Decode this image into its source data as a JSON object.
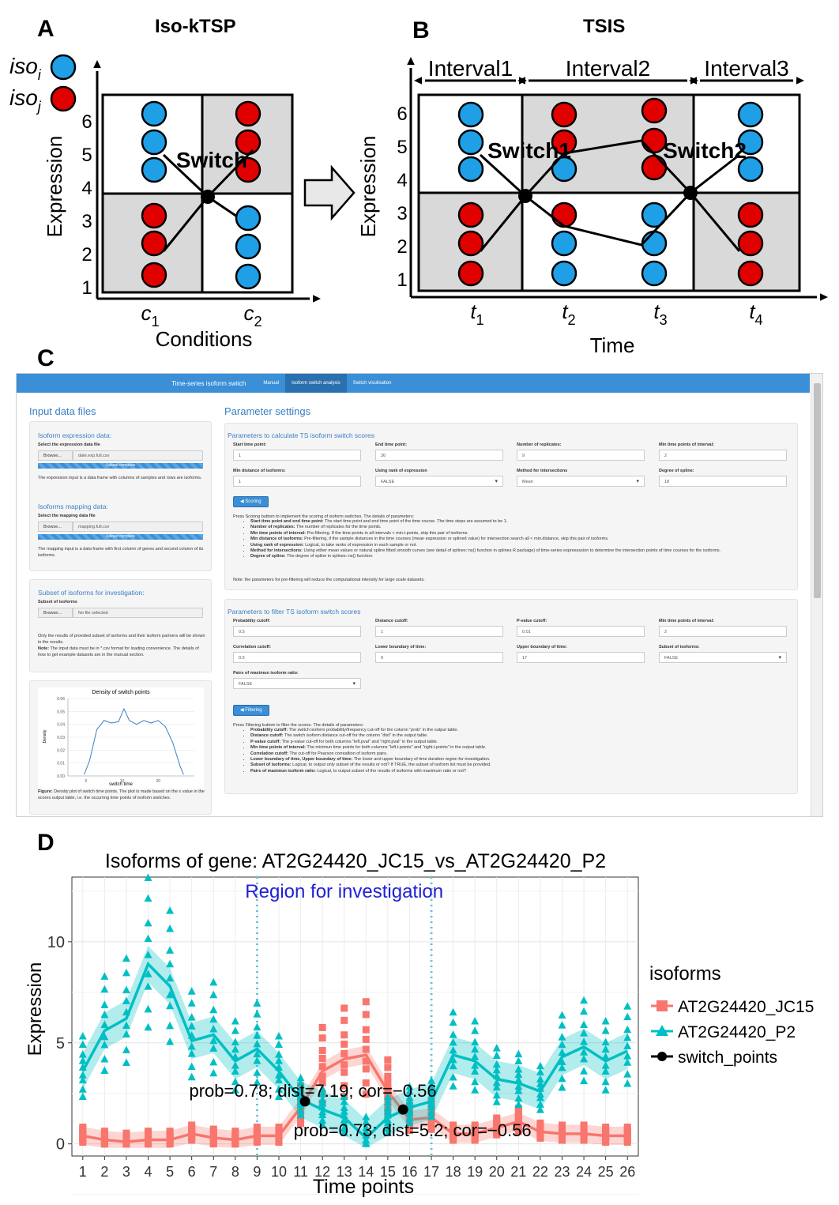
{
  "panelA": {
    "letter": "A",
    "title": "Iso-kTSP",
    "legend": [
      {
        "label": "iso_i",
        "color": "#1e9fe6"
      },
      {
        "label": "iso_j",
        "color": "#e00000"
      }
    ],
    "ylabel": "Expression",
    "xlabel": "Conditions",
    "yticks": [
      "1",
      "2",
      "3",
      "4",
      "5",
      "6"
    ],
    "xticks": [
      "c_1",
      "c_2"
    ],
    "switch_label": "Switch"
  },
  "panelB": {
    "letter": "B",
    "title": "TSIS",
    "intervals": [
      "Interval1",
      "Interval2",
      "Interval3"
    ],
    "ylabel": "Expression",
    "xlabel": "Time",
    "yticks": [
      "1",
      "2",
      "3",
      "4",
      "5",
      "6"
    ],
    "xticks": [
      "t_1",
      "t_2",
      "t_3",
      "t_4"
    ],
    "switch_labels": [
      "Switch1",
      "Switch2"
    ]
  },
  "panelC": {
    "letter": "C",
    "navbar": {
      "brand": "Time-series isoform switch",
      "items": [
        "Manual",
        "Isoform switch analysis",
        "Switch visulisation"
      ],
      "active": "Isoform switch analysis"
    },
    "input_header": "Input data files",
    "param_header": "Parameter settings",
    "expr": {
      "title": "Isoform expression data:",
      "select_label": "Select the expression data file",
      "browse": "Browse...",
      "file": "date.exp.full.csv",
      "progress": "Upload complete",
      "help": "The expression input is a data frame with columns of samples and rows are isoforms."
    },
    "mapping": {
      "title": "Isoforms mapping data:",
      "select_label": "Select the mapping data file",
      "browse": "Browse...",
      "file": "mapping.full.csv",
      "progress": "Upload complete",
      "help": "The mapping input is a data frame with first column of genes and second column of its isoforms."
    },
    "subset": {
      "title": "Subset of isoforms for investigation:",
      "label": "Subset of isoforms",
      "browse": "Browse...",
      "file": "No file selected",
      "help1": "Only the results of provided subset of isoforms and their isoform partners will be shown in the results.",
      "note_bold": "Note:",
      "help2": "The input data must be in *.csv format for loading convenience. The details of how to get example datasets are in the manual section."
    },
    "density": {
      "title": "Density of switch points",
      "xlabel": "switch time",
      "ylabel": "Density",
      "yticks": [
        "0.00",
        "0.01",
        "0.02",
        "0.03",
        "0.04",
        "0.05",
        "0.06"
      ],
      "xticks": [
        "0",
        "10",
        "20"
      ],
      "caption_bold": "Figure:",
      "caption": "Density plot of switch time points. The plot is made based on the x value in the scores output table, i.e. the occurring time points of isoform switches."
    },
    "score_well": {
      "title": "Parameters to calculate TS isoform switch scores",
      "fields": [
        {
          "label": "Start time point:",
          "value": "1",
          "type": "input"
        },
        {
          "label": "End time point:",
          "value": "26",
          "type": "input"
        },
        {
          "label": "Number of replicates:",
          "value": "9",
          "type": "input"
        },
        {
          "label": "Min time points of interval:",
          "value": "2",
          "type": "input"
        },
        {
          "label": "Min distance of isofomrs:",
          "value": "1",
          "type": "input"
        },
        {
          "label": "Using rank of expression",
          "value": "FALSE",
          "type": "select"
        },
        {
          "label": "Method for intersections",
          "value": "Mean",
          "type": "select"
        },
        {
          "label": "Degree of spline:",
          "value": "18",
          "type": "input"
        }
      ],
      "button": "Scoring",
      "intro": "Press Scoring buttom to implement the scoring of isoform switches. The details of parameters:",
      "help": [
        {
          "b": "Start time point and end time point:",
          "t": "The start time point and end time point of the time course. The time steps are assumed to be 1."
        },
        {
          "b": "Number of replicates:",
          "t": "The number of replicates for the time points."
        },
        {
          "b": "Min time points of interval:",
          "t": "Pre-filtering. If the time points in all intervals < min.t.points, skip this pair of isoforms."
        },
        {
          "b": "Min distance of isoforms:",
          "t": "Pre-filtering, if the sample distances in the time courses (mean expression or splined value) for intersection search all < min.distance, skip this pair of isoforms."
        },
        {
          "b": "Using rank of expression:",
          "t": "Logical, to take ranks of expression in each sample or not."
        },
        {
          "b": "Method for intersections:",
          "t": "Using either mean values or natural spline fitted smooth curves (see detail of splines::ns() function in splines R package) of time-series expressssion to determine the intersection points of time courses for the isoforms."
        },
        {
          "b": "Degree of spline:",
          "t": "The degree of spline in splines::ns() function."
        }
      ],
      "note": "Note: the parameters for pre-filtering will reduce the computational intensity for large scale datasets."
    },
    "filter_well": {
      "title": "Parameters to filter TS isoform switch scores",
      "fields": [
        {
          "label": "Probability cutoff:",
          "value": "0.5",
          "type": "input"
        },
        {
          "label": "Distance cutoff:",
          "value": "1",
          "type": "input"
        },
        {
          "label": "P-value cutoff:",
          "value": "0.01",
          "type": "input"
        },
        {
          "label": "Min time points of interval:",
          "value": "2",
          "type": "input"
        },
        {
          "label": "Correlation cutoff:",
          "value": "0.5",
          "type": "input"
        },
        {
          "label": "Lower boundary of time:",
          "value": "9",
          "type": "input"
        },
        {
          "label": "Upper boundary of time:",
          "value": "17",
          "type": "input"
        },
        {
          "label": "Subset of isoforms:",
          "value": "FALSE",
          "type": "select"
        },
        {
          "label": "Pairs of maximun isoform ratio:",
          "value": "FALSE",
          "type": "select"
        }
      ],
      "button": "Filtering",
      "intro": "Press Filtering buttom to filter the scores. The details of parameters:",
      "help": [
        {
          "b": "Probability cutoff:",
          "t": "The switch isoform probability/frequency cut-off for the column \"prob\" in the output table."
        },
        {
          "b": "Distance cutoff:",
          "t": "The switch isoform distance cut-off for the column \"dist\" in the output table."
        },
        {
          "b": "P-value cutoff:",
          "t": "The p-value cut-off for both columns \"left.pval\" and \"right.pval\" in the output table."
        },
        {
          "b": "Min time points of interval:",
          "t": "The minimun time points for both columns \"left.t.points\" and \"right.t.points\" in the output table."
        },
        {
          "b": "Correlation cutoff:",
          "t": "The cut-off for Pearson correaltion of isoform pairs."
        },
        {
          "b": "Lower boundary of time, Upper boundary of time:",
          "t": "The lower and upper boundary of time duration region for investigation."
        },
        {
          "b": "Subset of isoforms:",
          "t": "Logical, to output only subset of the results or not? If TRUE, the subset of isoform list must be provided."
        },
        {
          "b": "Pairs of maximun isoform ratio:",
          "t": "Logical, to output subset of the results of isoforms with maximum ratio or not?"
        }
      ]
    }
  },
  "panelD": {
    "letter": "D",
    "chart_data": {
      "type": "line",
      "title": "Isoforms of gene: AT2G24420_JC15_vs_AT2G24420_P2",
      "xlabel": "Time points",
      "ylabel": "Expression",
      "annotation": "Region for investigation",
      "region": [
        9,
        17
      ],
      "x": [
        1,
        2,
        3,
        4,
        5,
        6,
        7,
        8,
        9,
        10,
        11,
        12,
        13,
        14,
        15,
        16,
        17,
        18,
        19,
        20,
        21,
        22,
        23,
        24,
        25,
        26
      ],
      "xlim": [
        0.5,
        26.5
      ],
      "ylim": [
        -0.6,
        13.2
      ],
      "yticks": [
        0,
        5,
        10
      ],
      "grid": true,
      "legend_title": "isoforms",
      "legend_position": "right",
      "series": [
        {
          "name": "AT2G24420_JC15",
          "color": "#f8766d",
          "marker": "square",
          "values": [
            0.4,
            0.2,
            0.1,
            0.2,
            0.2,
            0.5,
            0.3,
            0.2,
            0.4,
            0.4,
            1.8,
            3.6,
            4.2,
            4.4,
            2.6,
            1.2,
            1.3,
            0.5,
            0.5,
            0.8,
            1.1,
            0.6,
            0.5,
            0.5,
            0.4,
            0.4
          ]
        },
        {
          "name": "AT2G24420_P2",
          "color": "#00bfc4",
          "marker": "triangle",
          "values": [
            3.6,
            5.6,
            6.2,
            8.9,
            7.8,
            5.1,
            5.4,
            4.1,
            4.7,
            3.6,
            2.2,
            1.7,
            1.3,
            0.3,
            1.3,
            1.8,
            2.1,
            4.4,
            4.1,
            3.2,
            3.0,
            2.6,
            4.3,
            4.8,
            4.1,
            4.6
          ]
        }
      ],
      "switch_points": {
        "name": "switch_points",
        "color": "#000000",
        "points": [
          {
            "x": 11.2,
            "y": 2.1,
            "label": "prob=0.78; dist=7.19; cor=−0.56"
          },
          {
            "x": 15.7,
            "y": 1.7,
            "label": "prob=0.73; dist=5.2; cor=−0.56"
          }
        ]
      }
    }
  }
}
